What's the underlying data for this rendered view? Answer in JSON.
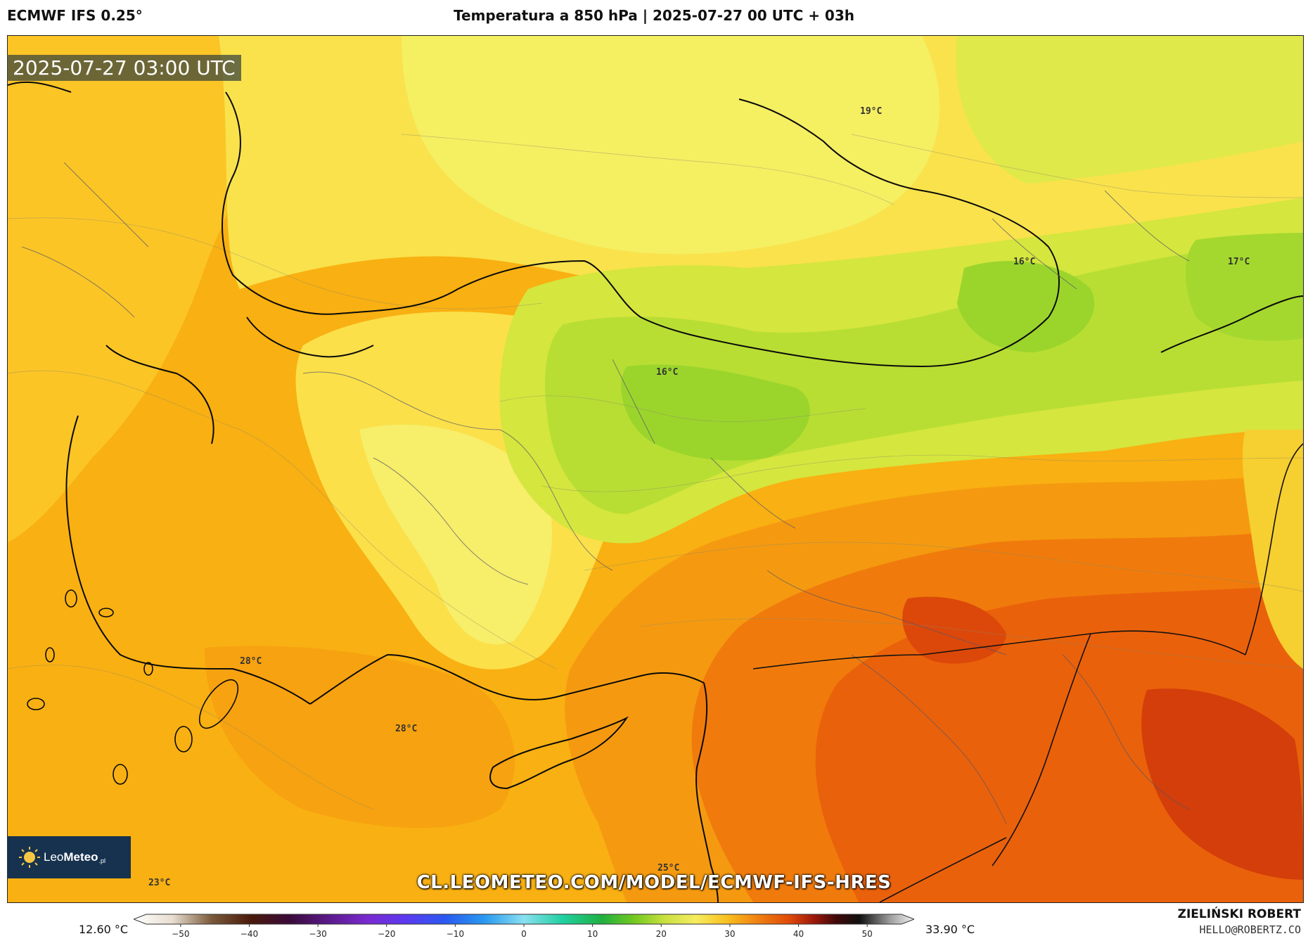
{
  "header": {
    "model": "ECMWF IFS 0.25°",
    "title": "Temperatura a 850 hPa | 2025-07-27 00 UTC + 03h"
  },
  "map": {
    "valid_time": "2025-07-27 03:00 UTC",
    "labels": [
      {
        "id": "lbl-19",
        "text": "19°C"
      },
      {
        "id": "lbl-16-east",
        "text": "16°C"
      },
      {
        "id": "lbl-17",
        "text": "17°C"
      },
      {
        "id": "lbl-16-central",
        "text": "16°C"
      },
      {
        "id": "lbl-28-west",
        "text": "28°C"
      },
      {
        "id": "lbl-28-sea",
        "text": "28°C"
      },
      {
        "id": "lbl-25",
        "text": "25°C"
      },
      {
        "id": "lbl-23",
        "text": "23°C"
      }
    ],
    "colors": {
      "cold_green": "#8fd22a",
      "mid_green": "#c7e43c",
      "light_yellow": "#f4ef5c",
      "yellow": "#fbe04a",
      "light_orange": "#fbc526",
      "orange": "#f8a10e",
      "dark_orange": "#f07b0c",
      "red_orange": "#e8560a",
      "deep_red": "#d8400a"
    }
  },
  "branding": {
    "logo_light": "Leo",
    "logo_bold": "Meteo",
    "logo_suffix": ".pl",
    "url": "CL.LEOMETEO.COM/MODEL/ECMWF-IFS-HRES",
    "author": "ZIELIŃSKI ROBERT",
    "email": "HELLO@ROBERTZ.CO"
  },
  "colorbar": {
    "min_label": "12.60 °C",
    "max_label": "33.90 °C",
    "ticks": [
      "−50",
      "−40",
      "−30",
      "−20",
      "−10",
      "0",
      "10",
      "20",
      "30",
      "40",
      "50"
    ],
    "tick_values": [
      -50,
      -40,
      -30,
      -20,
      -10,
      0,
      10,
      20,
      30,
      40,
      50
    ],
    "range": [
      -55,
      55
    ]
  }
}
